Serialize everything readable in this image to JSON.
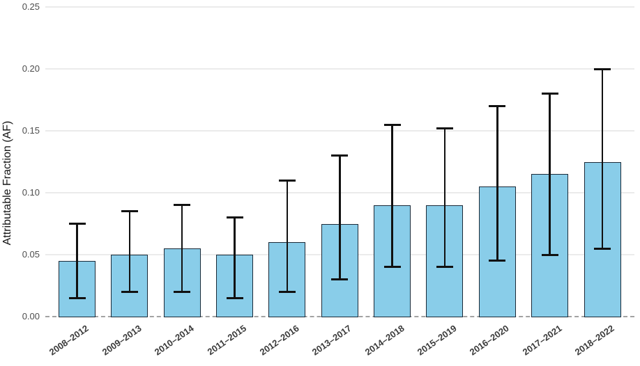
{
  "chart_data": {
    "type": "bar",
    "title": "",
    "xlabel": "",
    "ylabel": "Attributable Fraction (AF)",
    "categories": [
      "2008–2012",
      "2009–2013",
      "2010–2014",
      "2011–2015",
      "2012–2016",
      "2013–2017",
      "2014–2018",
      "2015–2019",
      "2016–2020",
      "2017–2021",
      "2018–2022"
    ],
    "values": [
      0.045,
      0.05,
      0.055,
      0.05,
      0.06,
      0.075,
      0.09,
      0.09,
      0.105,
      0.115,
      0.125
    ],
    "error_low": [
      0.015,
      0.02,
      0.02,
      0.015,
      0.02,
      0.03,
      0.04,
      0.04,
      0.045,
      0.05,
      0.055
    ],
    "error_high": [
      0.075,
      0.085,
      0.09,
      0.08,
      0.11,
      0.13,
      0.155,
      0.152,
      0.17,
      0.18,
      0.2
    ],
    "ylim": [
      0,
      0.25
    ],
    "yticks": [
      0,
      0.05,
      0.1,
      0.15,
      0.2,
      0.25
    ],
    "ytick_labels": [
      "0.00",
      "0.05",
      "0.10",
      "0.15",
      "0.20",
      "0.25"
    ],
    "grid": true,
    "legend": false,
    "zero_line_style": "dashed",
    "colors": {
      "bar_fill": "#89CDE9",
      "bar_stroke": "#1B2A38",
      "error_bar": "#111111",
      "gridline": "#EBEBEB",
      "zero_line": "#A3A3A3",
      "y_tick_label": "#4D4D4D",
      "x_tick_label": "#3A3A3A",
      "axis_title": "#141414",
      "background": "#FFFFFF"
    }
  }
}
